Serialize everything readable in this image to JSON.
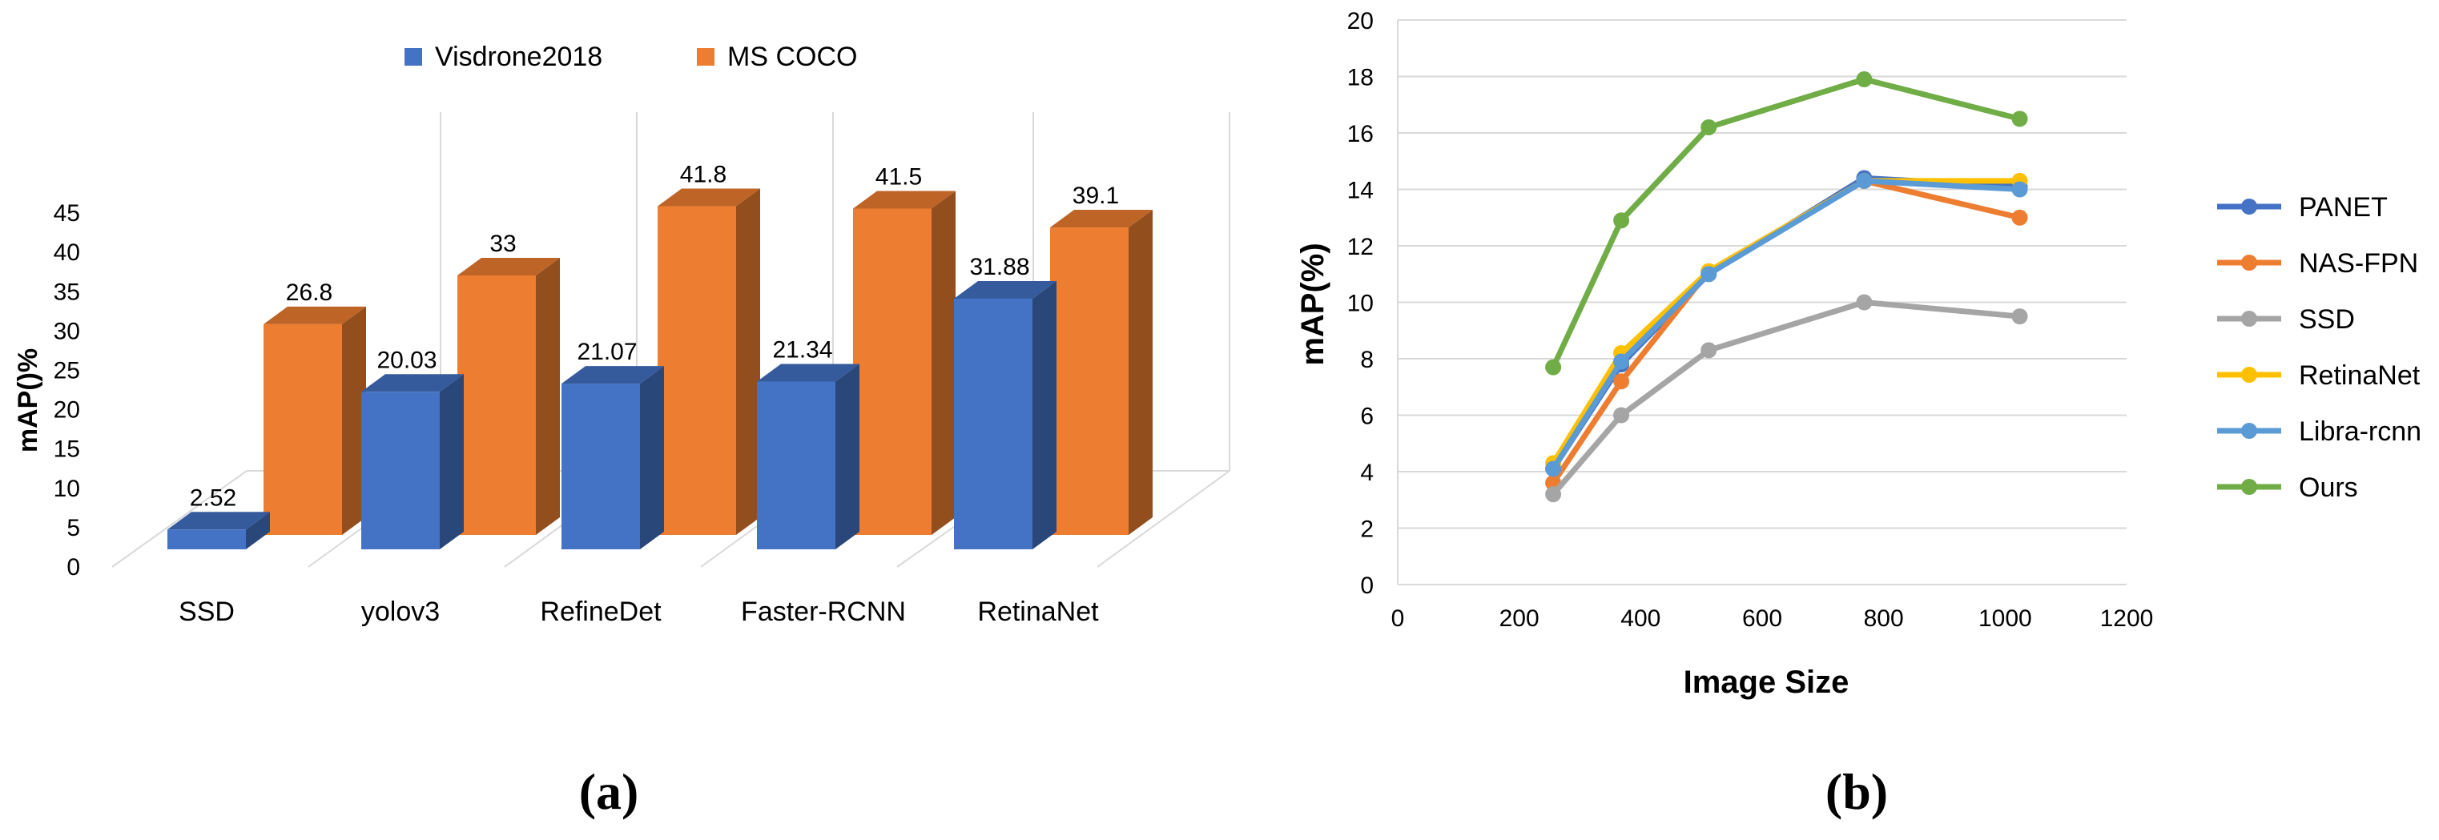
{
  "chart_data": [
    {
      "type": "bar",
      "panel_label": "(a)",
      "title": "",
      "xlabel": "",
      "ylabel": "mAP()%",
      "ylim": [
        0,
        45
      ],
      "yticks": [
        0,
        5,
        10,
        15,
        20,
        25,
        30,
        35,
        40,
        45
      ],
      "categories": [
        "SSD",
        "yolov3",
        "RefineDet",
        "Faster-RCNN",
        "RetinaNet"
      ],
      "series": [
        {
          "name": "Visdrone2018",
          "color": "#4472C4",
          "values": [
            2.52,
            20.03,
            21.07,
            21.34,
            31.88
          ],
          "labels": [
            "2.52",
            "20.03",
            "21.07",
            "21.34",
            "31.88"
          ]
        },
        {
          "name": "MS COCO",
          "color": "#ED7D31",
          "values": [
            26.8,
            33,
            41.8,
            41.5,
            39.1
          ],
          "labels": [
            "26.8",
            "33",
            "41.8",
            "41.5",
            "39.1"
          ]
        }
      ],
      "legend_position": "top",
      "grid": true,
      "style": "3d-column"
    },
    {
      "type": "line",
      "panel_label": "(b)",
      "title": "",
      "xlabel": "Image Size",
      "ylabel": "mAP(%)",
      "xlim": [
        0,
        1200
      ],
      "ylim": [
        0,
        20
      ],
      "xticks": [
        0,
        200,
        400,
        600,
        800,
        1000,
        1200
      ],
      "yticks": [
        0,
        2,
        4,
        6,
        8,
        10,
        12,
        14,
        16,
        18,
        20
      ],
      "x": [
        256,
        368,
        512,
        768,
        1024
      ],
      "series": [
        {
          "name": "PANET",
          "color": "#4472C4",
          "values": [
            4.1,
            7.8,
            11.0,
            14.4,
            14.1
          ]
        },
        {
          "name": "NAS-FPN",
          "color": "#ED7D31",
          "values": [
            3.6,
            7.2,
            11.1,
            14.3,
            13.0
          ]
        },
        {
          "name": "SSD",
          "color": "#A5A5A5",
          "values": [
            3.2,
            6.0,
            8.3,
            10.0,
            9.5
          ]
        },
        {
          "name": "RetinaNet",
          "color": "#FFC000",
          "values": [
            4.3,
            8.2,
            11.1,
            14.3,
            14.3
          ]
        },
        {
          "name": "Libra-rcnn",
          "color": "#5B9BD5",
          "values": [
            4.1,
            7.9,
            11.0,
            14.3,
            14.0
          ]
        },
        {
          "name": "Ours",
          "color": "#70AD47",
          "values": [
            7.7,
            12.9,
            16.2,
            17.9,
            16.5
          ]
        }
      ],
      "legend_position": "right",
      "grid": true
    }
  ]
}
